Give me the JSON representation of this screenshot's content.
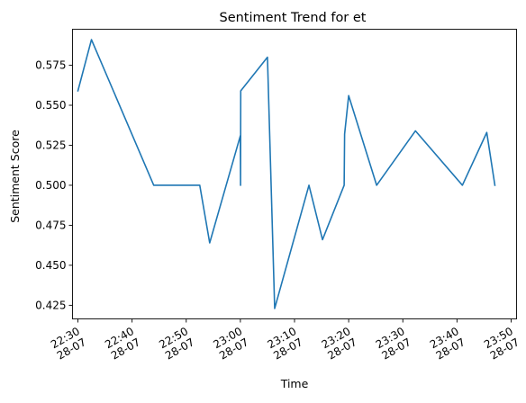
{
  "chart_data": {
    "type": "line",
    "title": "Sentiment Trend for et",
    "xlabel": "Time",
    "ylabel": "Sentiment Score",
    "line_color": "#1f77b4",
    "grid": false,
    "xlim": [
      "2025-07-28 22:29",
      "2025-07-28 23:51"
    ],
    "ylim": [
      0.4165,
      0.5975
    ],
    "x_ticks": [
      {
        "value": "2025-07-28 22:30",
        "time_label": "22:30",
        "date_label": "28-07"
      },
      {
        "value": "2025-07-28 22:40",
        "time_label": "22:40",
        "date_label": "28-07"
      },
      {
        "value": "2025-07-28 22:50",
        "time_label": "22:50",
        "date_label": "28-07"
      },
      {
        "value": "2025-07-28 23:00",
        "time_label": "23:00",
        "date_label": "28-07"
      },
      {
        "value": "2025-07-28 23:10",
        "time_label": "23:10",
        "date_label": "28-07"
      },
      {
        "value": "2025-07-28 23:20",
        "time_label": "23:20",
        "date_label": "28-07"
      },
      {
        "value": "2025-07-28 23:30",
        "time_label": "23:30",
        "date_label": "28-07"
      },
      {
        "value": "2025-07-28 23:40",
        "time_label": "23:40",
        "date_label": "28-07"
      },
      {
        "value": "2025-07-28 23:50",
        "time_label": "23:50",
        "date_label": "28-07"
      }
    ],
    "y_ticks": [
      {
        "value": 0.425,
        "label": "0.425"
      },
      {
        "value": 0.45,
        "label": "0.450"
      },
      {
        "value": 0.475,
        "label": "0.475"
      },
      {
        "value": 0.5,
        "label": "0.500"
      },
      {
        "value": 0.525,
        "label": "0.525"
      },
      {
        "value": 0.55,
        "label": "0.550"
      },
      {
        "value": 0.575,
        "label": "0.575"
      }
    ],
    "series": [
      {
        "points": [
          {
            "x": "2025-07-28 22:30:00",
            "y": 0.559
          },
          {
            "x": "2025-07-28 22:32:30",
            "y": 0.591
          },
          {
            "x": "2025-07-28 22:44:00",
            "y": 0.5
          },
          {
            "x": "2025-07-28 22:52:30",
            "y": 0.5
          },
          {
            "x": "2025-07-28 22:54:20",
            "y": 0.464
          },
          {
            "x": "2025-07-28 23:00:00",
            "y": 0.531
          },
          {
            "x": "2025-07-28 23:00:02",
            "y": 0.5
          },
          {
            "x": "2025-07-28 23:00:04",
            "y": 0.559
          },
          {
            "x": "2025-07-28 23:05:00",
            "y": 0.58
          },
          {
            "x": "2025-07-28 23:06:20",
            "y": 0.423
          },
          {
            "x": "2025-07-28 23:12:40",
            "y": 0.5
          },
          {
            "x": "2025-07-28 23:15:10",
            "y": 0.466
          },
          {
            "x": "2025-07-28 23:19:10",
            "y": 0.5
          },
          {
            "x": "2025-07-28 23:19:15",
            "y": 0.532
          },
          {
            "x": "2025-07-28 23:20:00",
            "y": 0.556
          },
          {
            "x": "2025-07-28 23:25:10",
            "y": 0.5
          },
          {
            "x": "2025-07-28 23:32:20",
            "y": 0.534
          },
          {
            "x": "2025-07-28 23:41:00",
            "y": 0.5
          },
          {
            "x": "2025-07-28 23:45:30",
            "y": 0.533
          },
          {
            "x": "2025-07-28 23:47:00",
            "y": 0.5
          }
        ]
      }
    ]
  }
}
